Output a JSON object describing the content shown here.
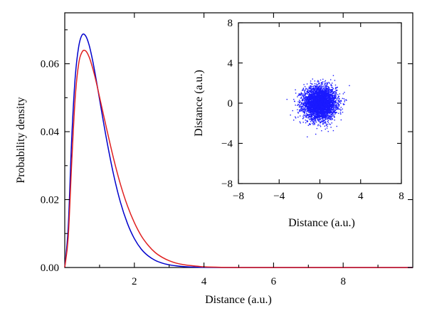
{
  "colors": {
    "series_1": "#0000cc",
    "series_2": "#e02020",
    "scatter": "#1a1aff"
  },
  "chart_data": [
    {
      "type": "line",
      "xlabel": "Distance (a.u.)",
      "ylabel": "Probability density",
      "xlim": [
        0,
        10
      ],
      "ylim": [
        0,
        0.075
      ],
      "xticks": [
        2,
        4,
        6,
        8
      ],
      "yticks": [
        0.0,
        0.02,
        0.04,
        0.06
      ],
      "ytick_labels": [
        "0.00",
        "0.02",
        "0.04",
        "0.06"
      ],
      "grid": false,
      "series": [
        {
          "color": "#0000cc",
          "x": [
            0,
            0.1,
            0.2,
            0.3,
            0.4,
            0.5,
            0.6,
            0.7,
            0.8,
            0.9,
            1.0,
            1.2,
            1.4,
            1.6,
            1.8,
            2.0,
            2.2,
            2.4,
            2.6,
            2.8,
            3.0,
            3.2,
            3.5,
            3.8,
            4.0,
            4.5,
            5.0
          ],
          "y": [
            0,
            0.012,
            0.038,
            0.056,
            0.065,
            0.0685,
            0.0682,
            0.0655,
            0.061,
            0.0555,
            0.0495,
            0.0378,
            0.0275,
            0.0192,
            0.013,
            0.0085,
            0.0054,
            0.0034,
            0.0021,
            0.0013,
            0.0008,
            0.0005,
            0.0002,
            0.0001,
            5e-05,
            1e-05,
            0
          ]
        },
        {
          "color": "#e02020",
          "x": [
            0,
            0.1,
            0.2,
            0.3,
            0.4,
            0.5,
            0.6,
            0.7,
            0.8,
            0.9,
            1.0,
            1.2,
            1.4,
            1.6,
            1.8,
            2.0,
            2.2,
            2.4,
            2.6,
            2.8,
            3.0,
            3.2,
            3.5,
            3.8,
            4.0,
            4.5,
            5.0
          ],
          "y": [
            0,
            0.009,
            0.031,
            0.05,
            0.06,
            0.0635,
            0.0638,
            0.062,
            0.0588,
            0.0548,
            0.0502,
            0.041,
            0.0322,
            0.0245,
            0.0182,
            0.0132,
            0.0093,
            0.0065,
            0.0044,
            0.003,
            0.002,
            0.0013,
            0.0007,
            0.0004,
            0.0002,
            5e-05,
            0
          ]
        }
      ]
    },
    {
      "type": "scatter",
      "xlabel": "Distance (a.u.)",
      "ylabel": "Distance (a.u.)",
      "xlim": [
        -8,
        8
      ],
      "ylim": [
        -8,
        8
      ],
      "xticks": [
        -8,
        -4,
        0,
        4,
        8
      ],
      "yticks": [
        -8,
        -4,
        0,
        4,
        8
      ],
      "xtick_labels": [
        "−8",
        "−4",
        "0",
        "4",
        "8"
      ],
      "ytick_labels": [
        "−8",
        "−4",
        "0",
        "4",
        "8"
      ],
      "color": "#1a1aff",
      "distribution": {
        "center": [
          0,
          0
        ],
        "spread": 0.8,
        "extent": 3.5
      }
    }
  ]
}
